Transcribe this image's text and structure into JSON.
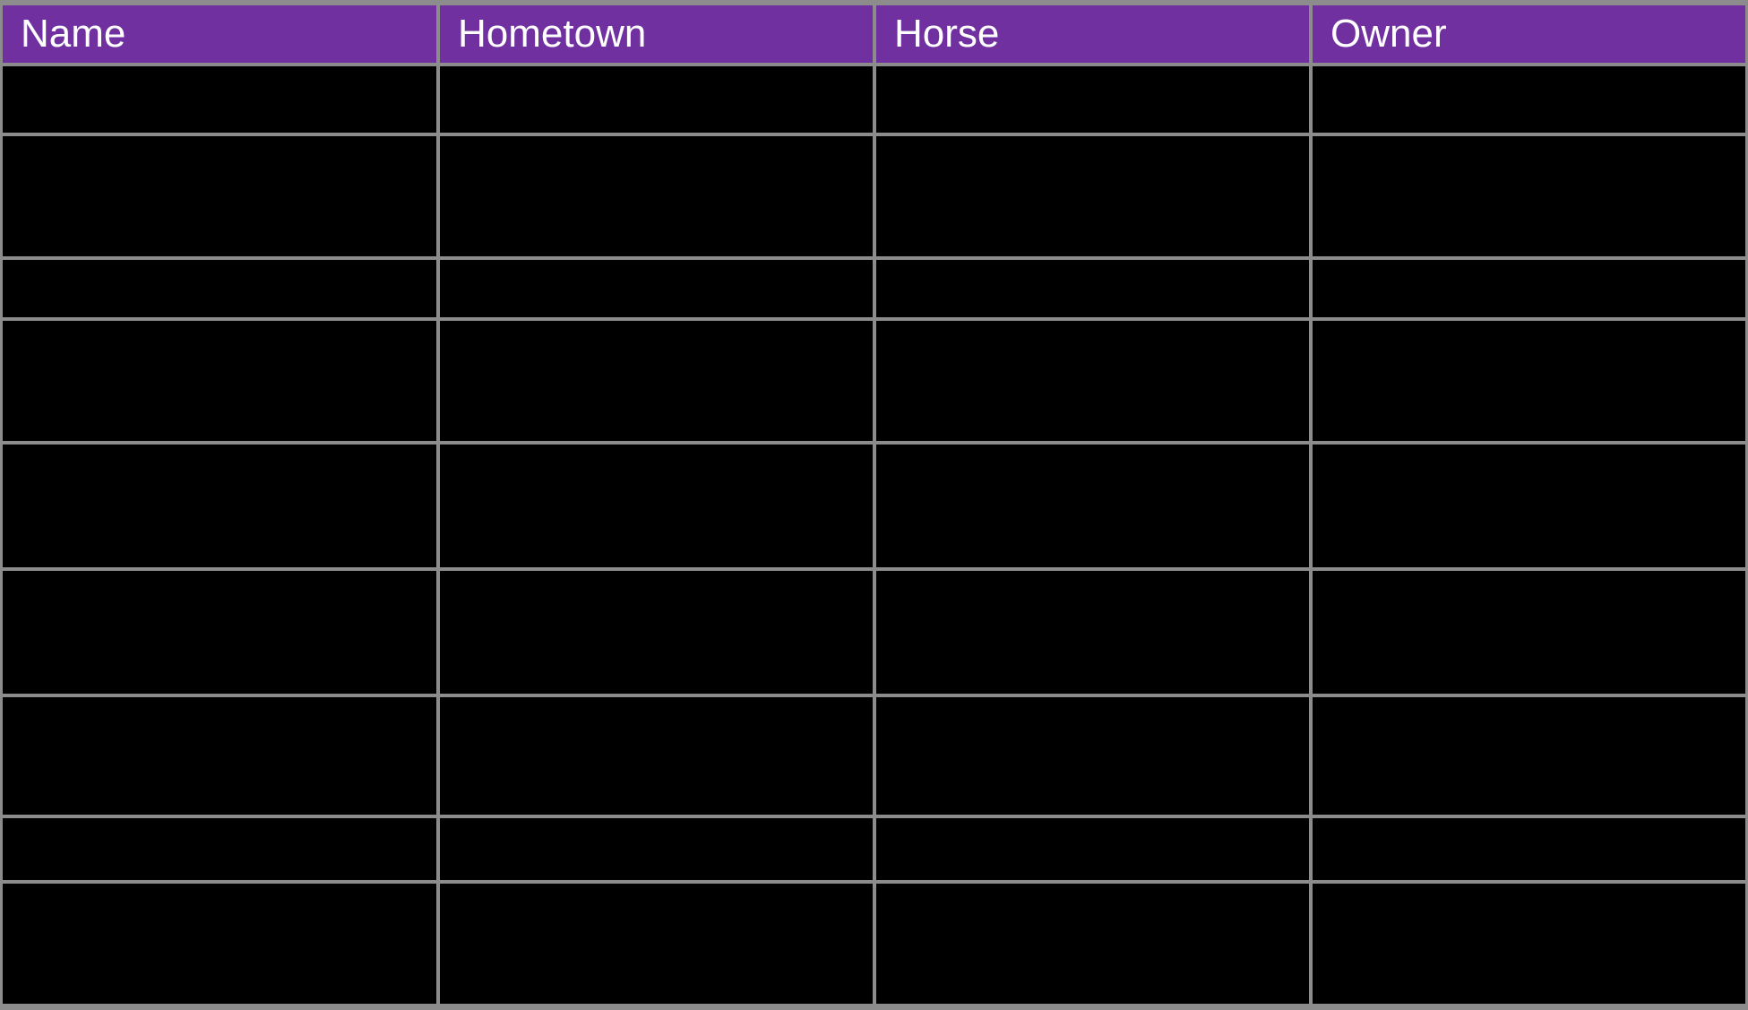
{
  "table": {
    "title": "horse-riders-table",
    "columns": [
      "Name",
      "Hometown",
      "Horse",
      "Owner"
    ],
    "row_count": 9,
    "rows": [
      [
        "",
        "",
        "",
        ""
      ],
      [
        "",
        "",
        "",
        ""
      ],
      [
        "",
        "",
        "",
        ""
      ],
      [
        "",
        "",
        "",
        ""
      ],
      [
        "",
        "",
        "",
        ""
      ],
      [
        "",
        "",
        "",
        ""
      ],
      [
        "",
        "",
        "",
        ""
      ],
      [
        "",
        "",
        "",
        ""
      ],
      [
        "",
        "",
        "",
        ""
      ]
    ]
  },
  "colors": {
    "header_bg": "#7030A0",
    "header_text": "#FFFFFF",
    "grid_border": "#8C8C8C",
    "cell_bg": "#000000"
  }
}
